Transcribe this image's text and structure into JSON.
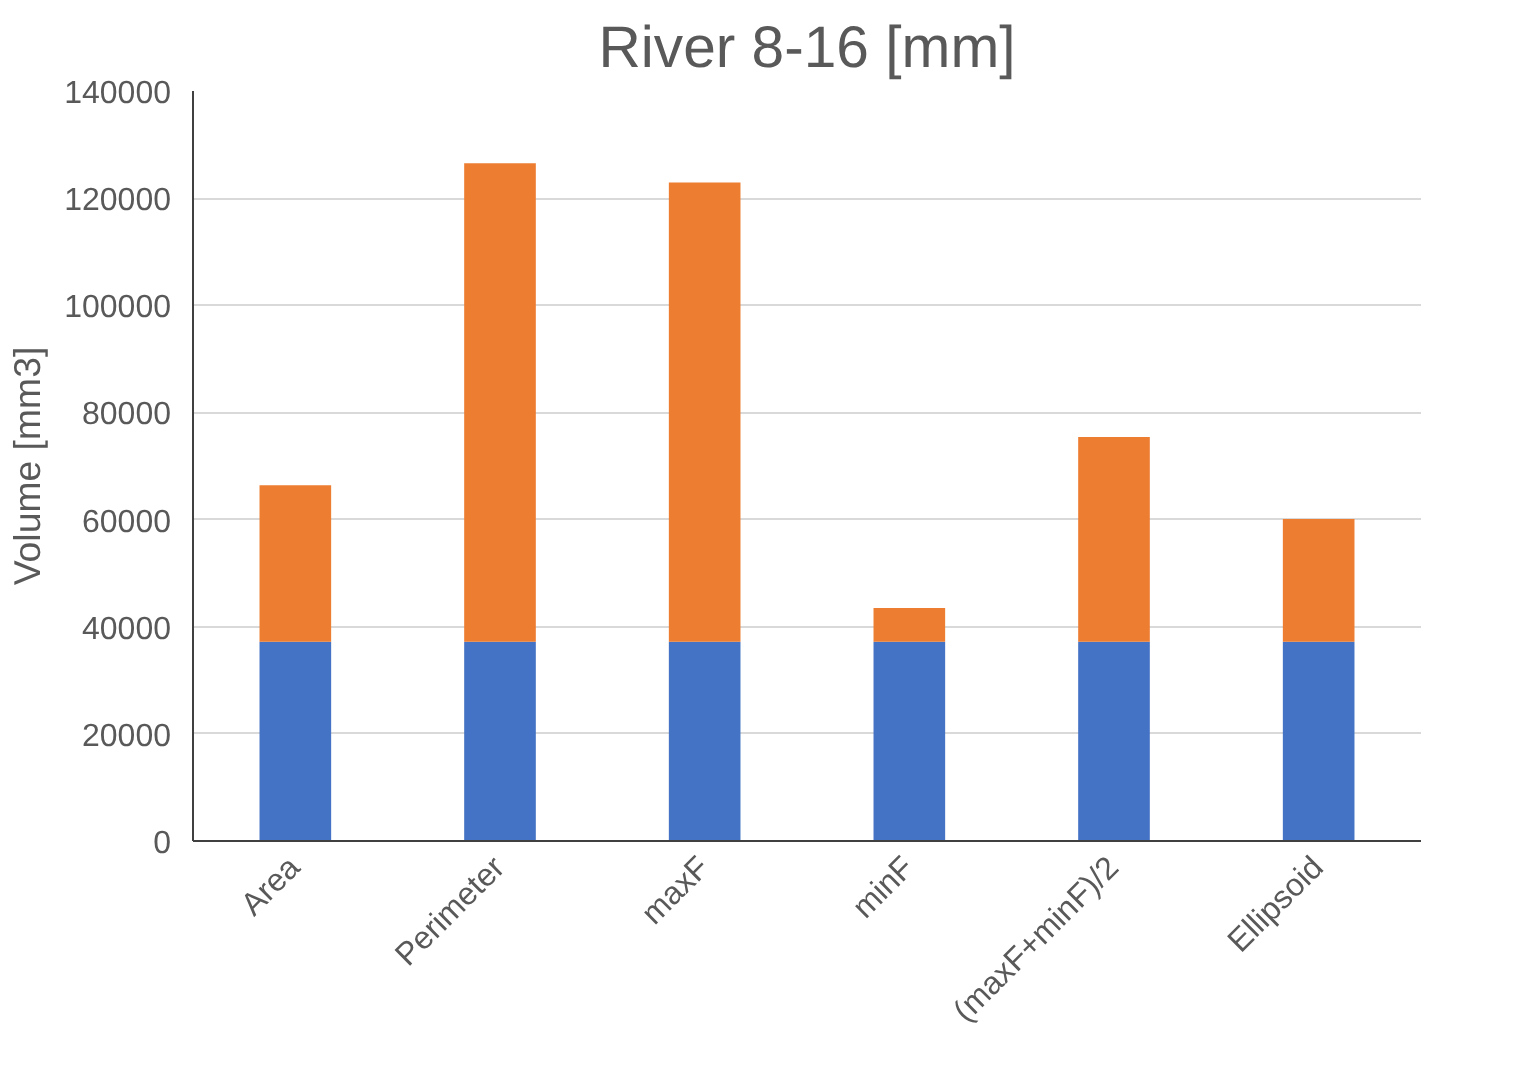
{
  "chart_data": {
    "type": "bar",
    "title": "River 8-16 [mm]",
    "ylabel": "Volume [mm3]",
    "categories": [
      "Area",
      "Perimeter",
      "maxF",
      "minF",
      "(maxF+minF)/2",
      "Ellipsoid"
    ],
    "stacked": true,
    "series": [
      {
        "color": "#4472c4",
        "values": [
          37200,
          37200,
          37200,
          37200,
          37200,
          37200
        ]
      },
      {
        "color": "#ed7d31",
        "values": [
          29200,
          89300,
          85700,
          6300,
          38200,
          22900
        ]
      }
    ],
    "ylim": [
      0,
      140000
    ],
    "yticks": [
      0,
      20000,
      40000,
      60000,
      80000,
      100000,
      120000,
      140000
    ],
    "grid": "y"
  }
}
